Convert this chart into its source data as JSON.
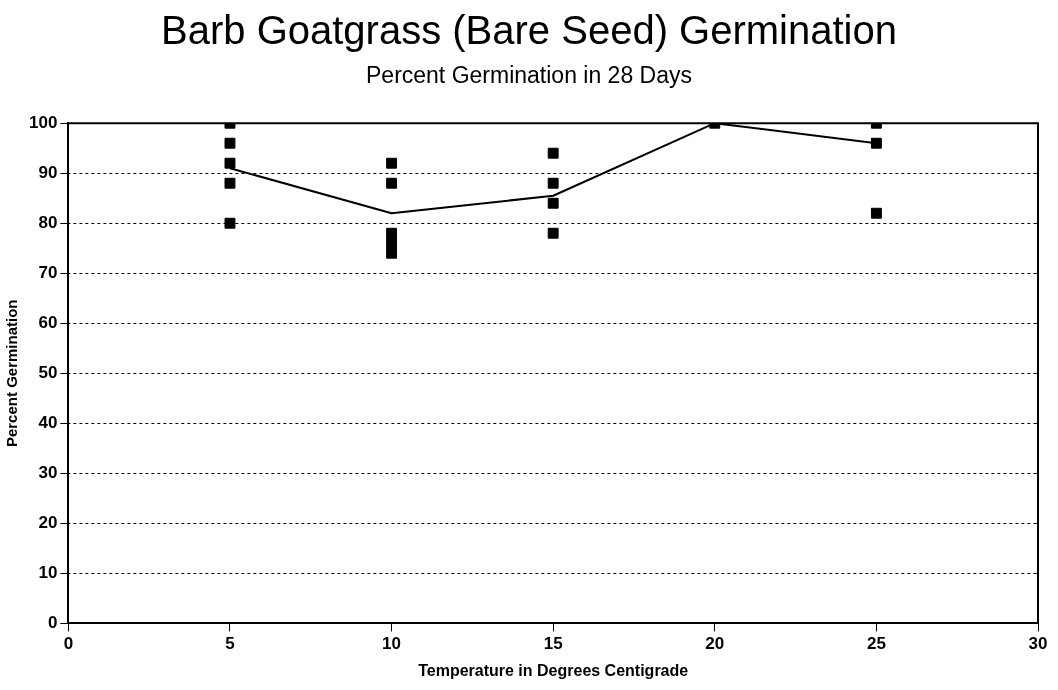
{
  "chart_data": {
    "type": "scatter",
    "title": "Barb Goatgrass (Bare Seed) Germination",
    "subtitle": "Percent Germination in 28 Days",
    "xlabel": "Temperature in Degrees Centigrade",
    "ylabel": "Percent Germination",
    "series": [
      {
        "type": "scatter",
        "color": "#000000",
        "marker": "square",
        "x": [
          5,
          5,
          5,
          5,
          5,
          10,
          10,
          10,
          10,
          10,
          15,
          15,
          15,
          15,
          20,
          25,
          25,
          25
        ],
        "values": [
          100,
          96,
          92,
          88,
          80,
          92,
          88,
          78,
          76,
          74,
          94,
          88,
          84,
          78,
          100,
          100,
          96,
          82
        ]
      },
      {
        "type": "line",
        "color": "#000000",
        "marker": "none",
        "x": [
          5,
          10,
          15,
          20,
          25
        ],
        "values": [
          91,
          82,
          85.5,
          100,
          96
        ]
      }
    ],
    "xlim": [
      0,
      30
    ],
    "xticks": [
      0,
      5,
      10,
      15,
      20,
      25,
      30
    ],
    "ylim": [
      0,
      100
    ],
    "yticks": [
      0,
      10,
      20,
      30,
      40,
      50,
      60,
      70,
      80,
      90,
      100
    ],
    "grid": "y",
    "legend": false
  }
}
